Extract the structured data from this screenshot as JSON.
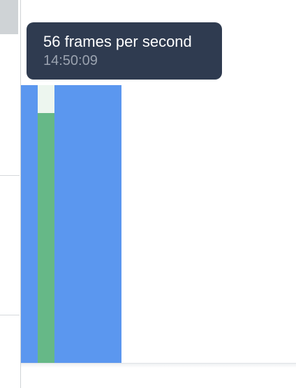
{
  "tooltip": {
    "title": "56 frames per second",
    "time": "14:50:09"
  },
  "colors": {
    "bar_blue": "#5b97ef",
    "frame_green": "#66b887",
    "frame_gap": "#edf6ef",
    "tooltip_bg": "#2f3b50"
  }
}
